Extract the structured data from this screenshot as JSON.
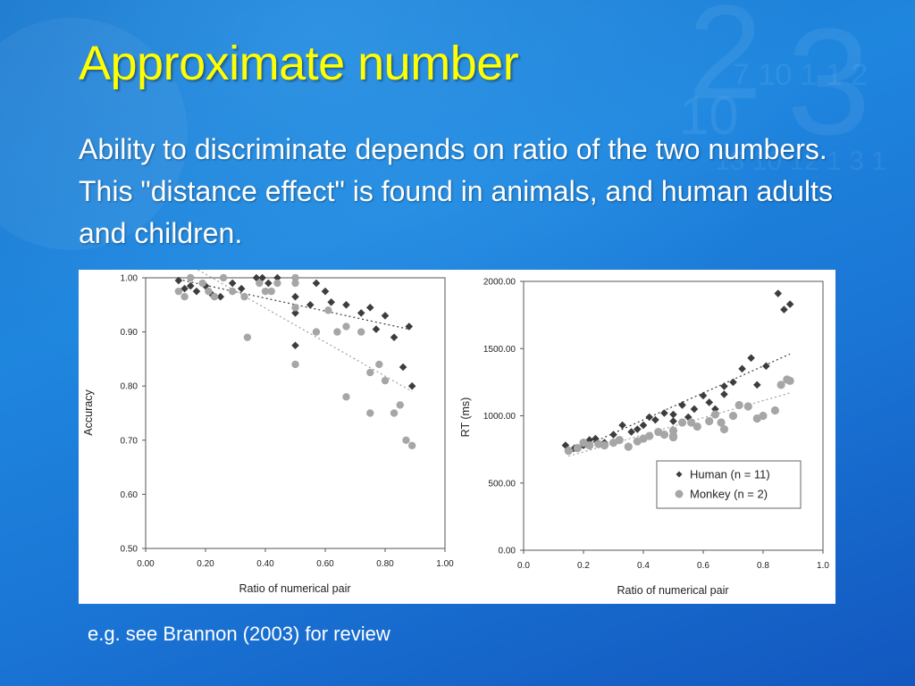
{
  "slide": {
    "title": "Approximate number",
    "body": "Ability to discriminate depends on ratio of the two numbers. This \"distance effect\" is found in animals, and human adults and children.",
    "caption": "e.g. see Brannon (2003) for review"
  },
  "colors": {
    "title": "#ffff00",
    "text": "#ffffff",
    "human_marker": "#3d3d3d",
    "monkey_marker": "#a6a6a6"
  },
  "chart_data": [
    {
      "type": "scatter",
      "xlabel": "Ratio of numerical pair",
      "ylabel": "Accuracy",
      "xlim": [
        0,
        1
      ],
      "ylim": [
        0.5,
        1.0
      ],
      "xticks": [
        "0.00",
        "0.20",
        "0.40",
        "0.60",
        "0.80",
        "1.00"
      ],
      "yticks": [
        "0.50",
        "0.60",
        "0.70",
        "0.80",
        "0.90",
        "1.00"
      ],
      "grid": false,
      "series": [
        {
          "marker": "diamond",
          "points": [
            [
              0.11,
              0.995
            ],
            [
              0.13,
              0.98
            ],
            [
              0.15,
              0.985
            ],
            [
              0.17,
              0.975
            ],
            [
              0.2,
              0.985
            ],
            [
              0.22,
              0.97
            ],
            [
              0.25,
              0.965
            ],
            [
              0.29,
              0.99
            ],
            [
              0.32,
              0.98
            ],
            [
              0.37,
              1.0
            ],
            [
              0.39,
              1.0
            ],
            [
              0.41,
              0.99
            ],
            [
              0.44,
              1.0
            ],
            [
              0.5,
              0.965
            ],
            [
              0.5,
              0.935
            ],
            [
              0.5,
              0.875
            ],
            [
              0.55,
              0.95
            ],
            [
              0.57,
              0.99
            ],
            [
              0.6,
              0.975
            ],
            [
              0.62,
              0.955
            ],
            [
              0.67,
              0.95
            ],
            [
              0.72,
              0.935
            ],
            [
              0.75,
              0.945
            ],
            [
              0.77,
              0.905
            ],
            [
              0.8,
              0.93
            ],
            [
              0.83,
              0.89
            ],
            [
              0.86,
              0.835
            ],
            [
              0.88,
              0.91
            ],
            [
              0.89,
              0.8
            ]
          ],
          "trend": [
            [
              0.11,
              0.997
            ],
            [
              0.88,
              0.905
            ]
          ]
        },
        {
          "marker": "circle",
          "points": [
            [
              0.11,
              0.975
            ],
            [
              0.13,
              0.965
            ],
            [
              0.15,
              1.0
            ],
            [
              0.19,
              0.99
            ],
            [
              0.21,
              0.975
            ],
            [
              0.23,
              0.965
            ],
            [
              0.26,
              1.0
            ],
            [
              0.29,
              0.975
            ],
            [
              0.33,
              0.965
            ],
            [
              0.34,
              0.89
            ],
            [
              0.38,
              0.99
            ],
            [
              0.4,
              0.975
            ],
            [
              0.42,
              0.975
            ],
            [
              0.44,
              0.99
            ],
            [
              0.5,
              1.0
            ],
            [
              0.5,
              0.99
            ],
            [
              0.5,
              0.945
            ],
            [
              0.5,
              0.84
            ],
            [
              0.57,
              0.9
            ],
            [
              0.61,
              0.94
            ],
            [
              0.64,
              0.9
            ],
            [
              0.67,
              0.78
            ],
            [
              0.67,
              0.91
            ],
            [
              0.72,
              0.9
            ],
            [
              0.75,
              0.825
            ],
            [
              0.75,
              0.75
            ],
            [
              0.78,
              0.84
            ],
            [
              0.8,
              0.81
            ],
            [
              0.83,
              0.75
            ],
            [
              0.85,
              0.765
            ],
            [
              0.87,
              0.7
            ],
            [
              0.89,
              0.69
            ]
          ],
          "trend": [
            [
              0.11,
              1.035
            ],
            [
              0.89,
              0.79
            ]
          ]
        }
      ]
    },
    {
      "type": "scatter",
      "xlabel": "Ratio of numerical pair",
      "ylabel": "RT (ms)",
      "xlim": [
        0,
        1
      ],
      "ylim": [
        0,
        2000
      ],
      "xticks": [
        "0.0",
        "0.2",
        "0.4",
        "0.6",
        "0.8",
        "1.0"
      ],
      "yticks": [
        "0.00",
        "500.00",
        "1000.00",
        "1500.00",
        "2000.00"
      ],
      "grid": false,
      "legend_position": "bottom-right",
      "series": [
        {
          "name": "Human (n = 11)",
          "marker": "diamond",
          "points": [
            [
              0.14,
              780
            ],
            [
              0.17,
              760
            ],
            [
              0.2,
              780
            ],
            [
              0.22,
              820
            ],
            [
              0.24,
              830
            ],
            [
              0.27,
              800
            ],
            [
              0.3,
              860
            ],
            [
              0.33,
              930
            ],
            [
              0.36,
              880
            ],
            [
              0.38,
              900
            ],
            [
              0.4,
              930
            ],
            [
              0.42,
              990
            ],
            [
              0.44,
              970
            ],
            [
              0.47,
              1020
            ],
            [
              0.5,
              1010
            ],
            [
              0.5,
              960
            ],
            [
              0.53,
              1080
            ],
            [
              0.55,
              990
            ],
            [
              0.57,
              1050
            ],
            [
              0.6,
              1150
            ],
            [
              0.62,
              1100
            ],
            [
              0.64,
              1050
            ],
            [
              0.67,
              1220
            ],
            [
              0.67,
              1160
            ],
            [
              0.7,
              1250
            ],
            [
              0.73,
              1350
            ],
            [
              0.76,
              1430
            ],
            [
              0.78,
              1230
            ],
            [
              0.81,
              1370
            ],
            [
              0.85,
              1910
            ],
            [
              0.87,
              1790
            ],
            [
              0.89,
              1830
            ]
          ],
          "trend": [
            [
              0.15,
              720
            ],
            [
              0.89,
              1460
            ]
          ]
        },
        {
          "name": "Monkey (n = 2)",
          "marker": "circle",
          "points": [
            [
              0.15,
              740
            ],
            [
              0.18,
              760
            ],
            [
              0.2,
              800
            ],
            [
              0.22,
              780
            ],
            [
              0.25,
              790
            ],
            [
              0.27,
              780
            ],
            [
              0.3,
              800
            ],
            [
              0.32,
              820
            ],
            [
              0.35,
              770
            ],
            [
              0.38,
              810
            ],
            [
              0.4,
              830
            ],
            [
              0.42,
              850
            ],
            [
              0.45,
              880
            ],
            [
              0.47,
              860
            ],
            [
              0.5,
              890
            ],
            [
              0.5,
              850
            ],
            [
              0.5,
              840
            ],
            [
              0.53,
              950
            ],
            [
              0.56,
              950
            ],
            [
              0.58,
              920
            ],
            [
              0.62,
              960
            ],
            [
              0.64,
              1010
            ],
            [
              0.66,
              950
            ],
            [
              0.67,
              900
            ],
            [
              0.7,
              1000
            ],
            [
              0.72,
              1080
            ],
            [
              0.75,
              1070
            ],
            [
              0.78,
              980
            ],
            [
              0.8,
              1000
            ],
            [
              0.84,
              1040
            ],
            [
              0.86,
              1230
            ],
            [
              0.88,
              1270
            ],
            [
              0.89,
              1260
            ]
          ],
          "trend": [
            [
              0.15,
              700
            ],
            [
              0.89,
              1170
            ]
          ]
        }
      ]
    }
  ]
}
